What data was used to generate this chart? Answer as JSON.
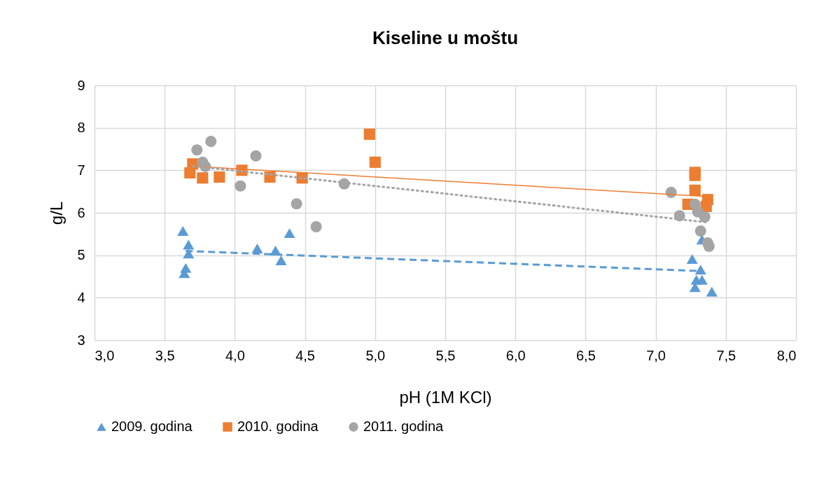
{
  "chart_data": {
    "type": "scatter",
    "title": "Kiseline u moštu",
    "xlabel": "pH (1M KCl)",
    "ylabel": "g/L",
    "xlim": [
      3,
      8
    ],
    "xticks": [
      {
        "value": 3,
        "label": "3,0"
      },
      {
        "value": 3.5,
        "label": "3,5"
      },
      {
        "value": 4,
        "label": "4,0"
      },
      {
        "value": 4.5,
        "label": "4,5"
      },
      {
        "value": 5,
        "label": "5,0"
      },
      {
        "value": 5.5,
        "label": "5,5"
      },
      {
        "value": 6,
        "label": "6,0"
      },
      {
        "value": 6.5,
        "label": "6,5"
      },
      {
        "value": 7,
        "label": "7,0"
      },
      {
        "value": 7.5,
        "label": "7,5"
      },
      {
        "value": 8,
        "label": "8,0"
      }
    ],
    "ylim": [
      3,
      9
    ],
    "yticks": [
      3,
      4,
      5,
      6,
      7,
      8,
      9
    ],
    "grid": true,
    "legend": "bottom",
    "series": [
      {
        "name": "2009. godina",
        "color": "#5b9bd5",
        "marker": "triangle",
        "x": [
          3.63,
          3.65,
          3.64,
          3.67,
          3.67,
          4.16,
          4.29,
          4.33,
          4.39,
          7.26,
          7.32,
          7.29,
          7.33,
          7.28,
          7.4,
          7.33
        ],
        "values": [
          5.57,
          4.7,
          4.58,
          5.25,
          5.04,
          5.16,
          5.11,
          4.88,
          5.52,
          4.91,
          4.66,
          4.42,
          4.42,
          4.25,
          4.14,
          5.37
        ]
      },
      {
        "name": "2010. godina",
        "color": "#ed7d31",
        "marker": "square",
        "x": [
          3.68,
          3.7,
          3.77,
          3.89,
          4.05,
          4.25,
          4.48,
          4.96,
          5.0,
          7.28,
          7.28,
          7.28,
          7.23,
          7.37,
          7.36
        ],
        "values": [
          6.94,
          7.15,
          6.82,
          6.84,
          7.0,
          6.84,
          6.82,
          7.85,
          7.19,
          6.95,
          6.88,
          6.53,
          6.2,
          6.31,
          6.15
        ]
      },
      {
        "name": "2011. godina",
        "color": "#a5a5a5",
        "marker": "circle",
        "x": [
          3.73,
          3.83,
          3.77,
          3.79,
          4.15,
          4.04,
          4.44,
          4.58,
          4.78,
          7.11,
          7.17,
          7.28,
          7.3,
          7.35,
          7.32,
          7.37,
          7.38
        ],
        "values": [
          7.48,
          7.68,
          7.19,
          7.09,
          7.34,
          6.63,
          6.21,
          5.67,
          6.68,
          6.48,
          5.93,
          6.2,
          6.02,
          5.9,
          5.57,
          5.29,
          5.21
        ]
      },
      {
        "type": "line",
        "color": "#5b9bd5",
        "line_style": "dashed",
        "x": [
          3.65,
          7.3
        ],
        "values": [
          5.1,
          4.63
        ]
      },
      {
        "type": "line",
        "color": "#ed7d31",
        "line_style": "solid",
        "x": [
          3.68,
          7.38
        ],
        "values": [
          7.1,
          6.38
        ]
      },
      {
        "type": "line",
        "color": "#a5a5a5",
        "line_style": "dotted",
        "x": [
          3.7,
          7.38
        ],
        "values": [
          7.1,
          5.77
        ]
      }
    ]
  }
}
